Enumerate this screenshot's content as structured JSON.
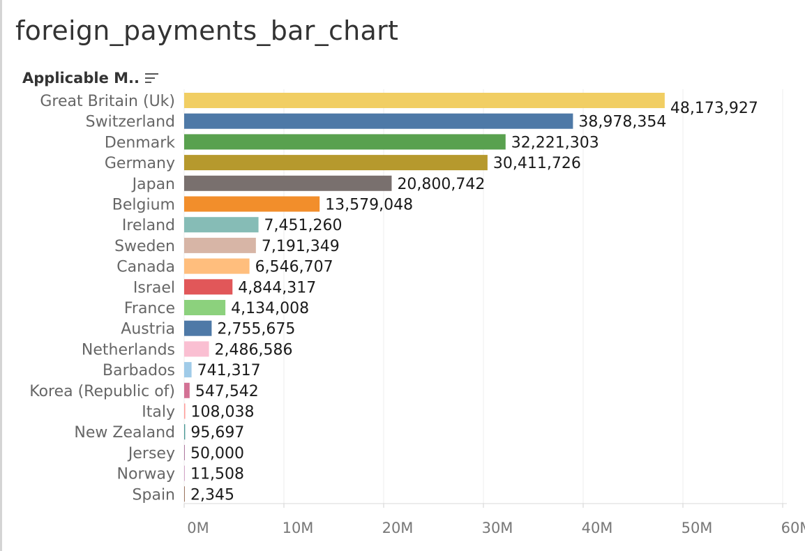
{
  "title": "foreign_payments_bar_chart",
  "header": {
    "label": "Applicable M.."
  },
  "chart_data": {
    "type": "bar",
    "orientation": "horizontal",
    "title": "foreign_payments_bar_chart",
    "ylabel": "Applicable M..",
    "xlabel": "",
    "grid": true,
    "xlim": [
      0,
      60000000
    ],
    "xticks": [
      {
        "value": 0,
        "label": "0M"
      },
      {
        "value": 10000000,
        "label": "10M"
      },
      {
        "value": 20000000,
        "label": "20M"
      },
      {
        "value": 30000000,
        "label": "30M"
      },
      {
        "value": 40000000,
        "label": "40M"
      },
      {
        "value": 50000000,
        "label": "50M"
      },
      {
        "value": 60000000,
        "label": "60M"
      }
    ],
    "categories": [
      "Great Britain (Uk)",
      "Switzerland",
      "Denmark",
      "Germany",
      "Japan",
      "Belgium",
      "Ireland",
      "Sweden",
      "Canada",
      "Israel",
      "France",
      "Austria",
      "Netherlands",
      "Barbados",
      "Korea (Republic of)",
      "Italy",
      "New Zealand",
      "Jersey",
      "Norway",
      "Spain"
    ],
    "values": [
      48173927,
      38978354,
      32221303,
      30411726,
      20800742,
      13579048,
      7451260,
      7191349,
      6546707,
      4844317,
      4134008,
      2755675,
      2486586,
      741317,
      547542,
      108038,
      95697,
      50000,
      11508,
      2345
    ],
    "value_labels": [
      "48,173,927",
      "38,978,354",
      "32,221,303",
      "30,411,726",
      "20,800,742",
      "13,579,048",
      "7,451,260",
      "7,191,349",
      "6,546,707",
      "4,844,317",
      "4,134,008",
      "2,755,675",
      "2,486,586",
      "741,317",
      "547,542",
      "108,038",
      "95,697",
      "50,000",
      "11,508",
      "2,345"
    ],
    "colors": [
      "#f1ce63",
      "#4e79a7",
      "#59a14f",
      "#b6992d",
      "#79706e",
      "#f28e2b",
      "#86bcb6",
      "#d7b5a6",
      "#ffbe7d",
      "#e15759",
      "#8cd17d",
      "#4e79a7",
      "#fabfd2",
      "#a0cbe8",
      "#d37295",
      "#ff9d9a",
      "#499894",
      "#b07aa1",
      "#d4a6c8",
      "#9d7660"
    ]
  }
}
